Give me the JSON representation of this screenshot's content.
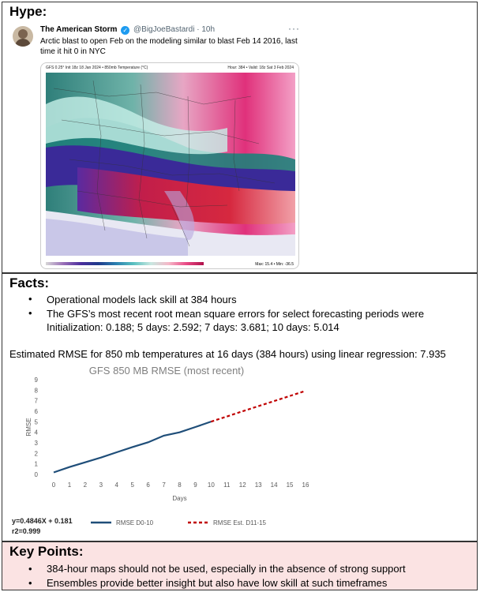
{
  "hype": {
    "title": "Hype:",
    "tweet": {
      "author": "The American Storm",
      "handle": "@BigJoeBastardi",
      "time": "10h",
      "text": "Arctic blast to open Feb on the modeling similar to blast Feb 14 2016, last time it hit 0 in NYC"
    },
    "map": {
      "header_left": "GFS 0.25° Init 18z 18 Jan 2024 • 850mb Temperature (°C)",
      "header_right": "Hour: 384 • Valid: 18z Sat 3 Feb 2024",
      "max_label": "Max: 15.4 • Min: -36.5"
    }
  },
  "facts": {
    "title": "Facts:",
    "bullets": [
      "Operational models lack skill at 384 hours",
      "The GFS’s most recent root mean square errors for select forecasting periods were Initialization: 0.188; 5 days: 2.592; 7 days: 3.681; 10 days: 5.014"
    ],
    "estimate": "Estimated RMSE for 850 mb temperatures at 16 days (384 hours) using linear regression: 7.935",
    "equation": "y=0.4846X + 0.181",
    "r2": "r2=0.999"
  },
  "chart_data": {
    "type": "line",
    "title": "GFS 850 MB RMSE (most recent)",
    "xlabel": "Days",
    "ylabel": "RMSE",
    "xlim": [
      0,
      16
    ],
    "ylim": [
      0,
      9
    ],
    "x_ticks": [
      0,
      1,
      2,
      3,
      4,
      5,
      6,
      7,
      8,
      9,
      10,
      11,
      12,
      13,
      14,
      15,
      16
    ],
    "y_ticks": [
      0,
      1,
      2,
      3,
      4,
      5,
      6,
      7,
      8,
      9
    ],
    "grid": false,
    "legend_position": "bottom",
    "series": [
      {
        "name": "RMSE D0-10",
        "color": "#1f4e79",
        "style": "solid",
        "x": [
          0,
          1,
          2,
          3,
          4,
          5,
          6,
          7,
          8,
          9,
          10
        ],
        "y": [
          0.188,
          0.7,
          1.15,
          1.6,
          2.1,
          2.592,
          3.05,
          3.681,
          4.0,
          4.5,
          5.014
        ]
      },
      {
        "name": "RMSE Est. D11-15",
        "color": "#c00000",
        "style": "dashed",
        "x": [
          10,
          11,
          12,
          13,
          14,
          15,
          16
        ],
        "y": [
          5.014,
          5.5,
          5.997,
          6.48,
          6.965,
          7.45,
          7.935
        ]
      }
    ]
  },
  "keypoints": {
    "title": "Key Points:",
    "bullets": [
      "384-hour maps should not be used, especially in the absence of strong support",
      "Ensembles provide better insight but also have low skill at such timeframes"
    ]
  },
  "colors": {
    "keypoints_bg": "#fbe3e3",
    "series_solid": "#1f4e79",
    "series_dashed": "#c00000"
  }
}
